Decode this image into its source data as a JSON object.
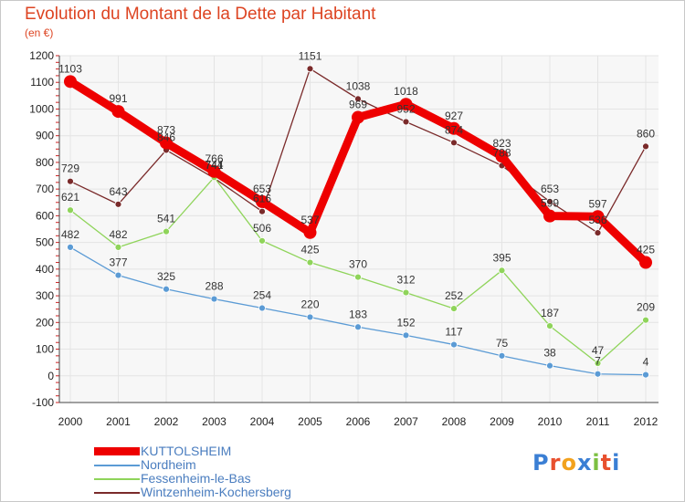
{
  "title": "Evolution du Montant de la Dette par Habitant",
  "unit_label": "(en €)",
  "logo": {
    "text": "Proxiti",
    "colors": [
      "#3b7fd4",
      "#e8502e",
      "#f2a21e",
      "#3b7fd4",
      "#7cc042",
      "#e8502e",
      "#3b7fd4"
    ]
  },
  "chart_data": {
    "type": "line",
    "xlabel": "",
    "ylabel": "",
    "ylim": [
      -100,
      1200
    ],
    "yticks": [
      -100,
      0,
      100,
      200,
      300,
      400,
      500,
      600,
      700,
      800,
      900,
      1000,
      1100,
      1200
    ],
    "x": [
      "2000",
      "2001",
      "2002",
      "2003",
      "2004",
      "2005",
      "2006",
      "2007",
      "2008",
      "2009",
      "2010",
      "2011",
      "2012"
    ],
    "grid": true,
    "legend_position": "bottom-left",
    "series": [
      {
        "name": "Wintzenheim-Kochersberg",
        "color": "#7a2a2a",
        "values": [
          729,
          643,
          846,
          741,
          616,
          1151,
          1038,
          952,
          874,
          788,
          653,
          536,
          860
        ],
        "labels": [
          "729",
          "643",
          "846",
          "741",
          "616",
          "1151",
          "1038",
          "952",
          "874",
          "788",
          "653",
          "536",
          "860"
        ]
      },
      {
        "name": "Fessenheim-le-Bas",
        "color": "#8fd45a",
        "values": [
          621,
          482,
          541,
          744,
          506,
          425,
          370,
          312,
          252,
          395,
          187,
          47,
          209
        ],
        "labels": [
          "621",
          "482",
          "541",
          "744",
          "506",
          "425",
          "370",
          "312",
          "252",
          "395",
          "187",
          "47",
          "209"
        ]
      },
      {
        "name": "Nordheim",
        "color": "#5b9bd5",
        "values": [
          482,
          377,
          325,
          288,
          254,
          220,
          183,
          152,
          117,
          75,
          38,
          7,
          4
        ],
        "labels": [
          "482",
          "377",
          "325",
          "288",
          "254",
          "220",
          "183",
          "152",
          "117",
          "75",
          "38",
          "7",
          "4"
        ]
      },
      {
        "name": "KUTTOLSHEIM",
        "color": "#ee0000",
        "values": [
          1103,
          991,
          873,
          766,
          653,
          537,
          969,
          1018,
          927,
          823,
          599,
          597,
          425
        ],
        "labels": [
          "1103",
          "991",
          "873",
          "766",
          "653",
          "537",
          "969",
          "1018",
          "927",
          "823",
          "599",
          "597",
          "425"
        ]
      }
    ]
  }
}
